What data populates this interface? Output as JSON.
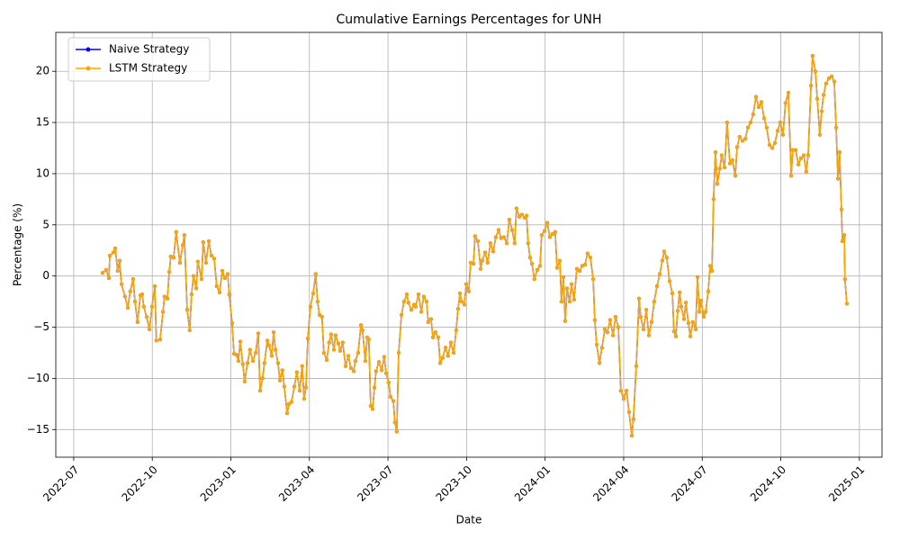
{
  "chart_data": {
    "type": "line",
    "title": "Cumulative Earnings Percentages for UNH",
    "x_label": "Date",
    "y_label": "Percentage (%)",
    "xlim": [
      2022.443,
      2025.072
    ],
    "ylim": [
      -17.7,
      23.8
    ],
    "xticks": [
      {
        "value": 2022.5,
        "label": "2022-07"
      },
      {
        "value": 2022.75,
        "label": "2022-10"
      },
      {
        "value": 2023.0,
        "label": "2023-01"
      },
      {
        "value": 2023.25,
        "label": "2023-04"
      },
      {
        "value": 2023.5,
        "label": "2023-07"
      },
      {
        "value": 2023.75,
        "label": "2023-10"
      },
      {
        "value": 2024.0,
        "label": "2024-01"
      },
      {
        "value": 2024.25,
        "label": "2024-04"
      },
      {
        "value": 2024.5,
        "label": "2024-07"
      },
      {
        "value": 2024.75,
        "label": "2024-10"
      },
      {
        "value": 2025.0,
        "label": "2025-01"
      }
    ],
    "yticks": [
      {
        "value": -15,
        "label": "−15"
      },
      {
        "value": -10,
        "label": "−10"
      },
      {
        "value": -5,
        "label": "−5"
      },
      0,
      5,
      10,
      15,
      20
    ],
    "grid": true,
    "legend": "upper left",
    "x": [
      2022.592,
      2022.603,
      2022.612,
      2022.615,
      2022.626,
      2022.632,
      2022.64,
      2022.646,
      2022.652,
      2022.663,
      2022.672,
      2022.68,
      2022.689,
      2022.695,
      2022.703,
      2022.712,
      2022.718,
      2022.723,
      2022.732,
      2022.741,
      2022.749,
      2022.758,
      2022.763,
      2022.775,
      2022.784,
      2022.789,
      2022.798,
      2022.804,
      2022.809,
      2022.818,
      2022.826,
      2022.838,
      2022.847,
      2022.852,
      2022.861,
      2022.869,
      2022.875,
      2022.881,
      2022.89,
      2022.895,
      2022.907,
      2022.912,
      2022.921,
      2022.93,
      2022.938,
      2022.947,
      2022.955,
      2022.964,
      2022.973,
      2022.981,
      2022.99,
      2022.995,
      2023.004,
      2023.01,
      2023.018,
      2023.024,
      2023.03,
      2023.038,
      2023.044,
      2023.053,
      2023.061,
      2023.07,
      2023.079,
      2023.087,
      2023.093,
      2023.101,
      2023.107,
      2023.116,
      2023.122,
      2023.13,
      2023.136,
      2023.142,
      2023.15,
      2023.156,
      2023.164,
      2023.17,
      2023.179,
      2023.185,
      2023.193,
      2023.202,
      2023.21,
      2023.219,
      2023.227,
      2023.233,
      2023.239,
      2023.245,
      2023.253,
      2023.262,
      2023.27,
      2023.276,
      2023.282,
      2023.29,
      2023.296,
      2023.305,
      2023.313,
      2023.319,
      2023.328,
      2023.333,
      2023.342,
      2023.348,
      2023.356,
      2023.365,
      2023.374,
      2023.382,
      2023.391,
      2023.396,
      2023.405,
      2023.414,
      2023.419,
      2023.428,
      2023.434,
      2023.439,
      2023.445,
      2023.451,
      2023.457,
      2023.462,
      2023.471,
      2023.48,
      2023.488,
      2023.494,
      2023.502,
      2023.508,
      2023.517,
      2023.522,
      2023.528,
      2023.534,
      2023.543,
      2023.551,
      2023.56,
      2023.565,
      2023.574,
      2023.583,
      2023.588,
      2023.597,
      2023.606,
      2023.614,
      2023.623,
      2023.628,
      2023.637,
      2023.643,
      2023.651,
      2023.66,
      2023.666,
      2023.674,
      2023.683,
      2023.691,
      2023.7,
      2023.709,
      2023.717,
      2023.723,
      2023.729,
      2023.734,
      2023.743,
      2023.749,
      2023.757,
      2023.763,
      2023.772,
      2023.777,
      2023.786,
      2023.795,
      2023.8,
      2023.809,
      2023.817,
      2023.826,
      2023.835,
      2023.843,
      2023.852,
      2023.86,
      2023.869,
      2023.878,
      2023.886,
      2023.895,
      2023.903,
      2023.909,
      2023.918,
      2023.926,
      2023.935,
      2023.941,
      2023.946,
      2023.952,
      2023.958,
      2023.966,
      2023.975,
      2023.984,
      2023.989,
      2023.998,
      2024.007,
      2024.015,
      2024.024,
      2024.032,
      2024.038,
      2024.047,
      2024.052,
      2024.058,
      2024.064,
      2024.07,
      2024.078,
      2024.084,
      2024.092,
      2024.101,
      2024.11,
      2024.118,
      2024.127,
      2024.135,
      2024.144,
      2024.153,
      2024.158,
      2024.164,
      2024.173,
      2024.181,
      2024.19,
      2024.198,
      2024.207,
      2024.216,
      2024.224,
      2024.233,
      2024.241,
      2024.25,
      2024.259,
      2024.267,
      2024.276,
      2024.281,
      2024.29,
      2024.299,
      2024.304,
      2024.313,
      2024.322,
      2024.33,
      2024.339,
      2024.347,
      2024.356,
      2024.365,
      2024.373,
      2024.379,
      2024.387,
      2024.396,
      2024.405,
      2024.41,
      2024.416,
      2024.422,
      2024.428,
      2024.433,
      2024.442,
      2024.448,
      2024.456,
      2024.462,
      2024.47,
      2024.479,
      2024.485,
      2024.491,
      2024.496,
      2024.505,
      2024.511,
      2024.519,
      2024.525,
      2024.531,
      2024.536,
      2024.542,
      2024.548,
      2024.556,
      2024.562,
      2024.571,
      2024.579,
      2024.588,
      2024.596,
      2024.605,
      2024.611,
      2024.619,
      2024.628,
      2024.637,
      2024.645,
      2024.654,
      2024.662,
      2024.671,
      2024.68,
      2024.688,
      2024.697,
      2024.705,
      2024.714,
      2024.723,
      2024.731,
      2024.74,
      2024.748,
      2024.757,
      2024.765,
      2024.774,
      2024.783,
      2024.788,
      2024.797,
      2024.806,
      2024.814,
      2024.823,
      2024.831,
      2024.837,
      2024.846,
      2024.851,
      2024.86,
      2024.866,
      2024.874,
      2024.88,
      2024.886,
      2024.894,
      2024.903,
      2024.912,
      2024.92,
      2024.926,
      2024.932,
      2024.937,
      2024.943,
      2024.946,
      2024.952,
      2024.954,
      2024.96
    ],
    "series": [
      {
        "name": "Naive Strategy",
        "color": "#0000ff",
        "values": [
          0.3,
          0.6,
          -0.2,
          2.0,
          2.3,
          2.7,
          0.5,
          1.5,
          -0.8,
          -2.0,
          -3.1,
          -1.5,
          -0.3,
          -2.5,
          -4.5,
          -1.9,
          -1.8,
          -3.0,
          -4.0,
          -5.2,
          -3.0,
          -1.0,
          -6.3,
          -6.2,
          -3.5,
          -2.0,
          -2.2,
          0.4,
          1.9,
          1.8,
          4.3,
          1.3,
          3.0,
          4.0,
          -3.3,
          -5.3,
          -1.8,
          0.0,
          -1.2,
          1.4,
          -0.3,
          3.3,
          1.3,
          3.4,
          2.0,
          1.7,
          -1.0,
          -1.6,
          0.5,
          -0.2,
          0.2,
          -1.8,
          -4.6,
          -7.6,
          -7.7,
          -8.3,
          -6.4,
          -8.6,
          -10.3,
          -8.5,
          -7.2,
          -8.3,
          -7.5,
          -5.6,
          -11.2,
          -10.0,
          -8.5,
          -6.3,
          -6.8,
          -7.8,
          -5.5,
          -7.2,
          -8.5,
          -10.2,
          -9.2,
          -10.8,
          -13.4,
          -12.5,
          -12.3,
          -10.8,
          -9.4,
          -11.2,
          -8.8,
          -12.0,
          -10.9,
          -6.1,
          -3.0,
          -1.7,
          0.2,
          -2.5,
          -3.8,
          -4.0,
          -7.5,
          -8.2,
          -6.5,
          -5.7,
          -7.2,
          -5.8,
          -6.6,
          -7.3,
          -6.5,
          -8.8,
          -7.8,
          -9.0,
          -9.3,
          -8.3,
          -7.5,
          -4.8,
          -5.3,
          -8.3,
          -6.0,
          -6.2,
          -12.7,
          -13.0,
          -10.9,
          -9.3,
          -8.4,
          -9.2,
          -7.9,
          -9.5,
          -10.4,
          -11.8,
          -12.2,
          -14.3,
          -15.2,
          -7.5,
          -3.8,
          -2.5,
          -1.8,
          -2.6,
          -3.3,
          -2.8,
          -3.0,
          -1.8,
          -3.5,
          -2.0,
          -2.5,
          -4.5,
          -4.2,
          -6.0,
          -5.5,
          -6.0,
          -8.5,
          -8.0,
          -7.0,
          -7.8,
          -6.5,
          -7.5,
          -5.3,
          -3.2,
          -1.7,
          -2.5,
          -2.8,
          -0.8,
          -1.5,
          1.3,
          1.2,
          3.9,
          3.4,
          0.7,
          1.5,
          2.3,
          1.3,
          3.2,
          2.4,
          3.8,
          4.5,
          3.7,
          3.8,
          3.2,
          5.5,
          4.5,
          3.2,
          6.6,
          5.8,
          6.0,
          5.7,
          5.9,
          3.2,
          1.8,
          1.2,
          -0.3,
          0.6,
          1.0,
          4.0,
          4.4,
          5.2,
          3.8,
          4.1,
          4.3,
          0.8,
          1.5,
          -2.5,
          -0.1,
          -4.4,
          -1.2,
          -2.5,
          -0.8,
          -2.3,
          0.7,
          0.5,
          1.0,
          1.1,
          2.2,
          1.8,
          -0.3,
          -4.3,
          -6.7,
          -8.5,
          -7.0,
          -5.2,
          -5.5,
          -4.3,
          -5.8,
          -4.0,
          -5.0,
          -11.2,
          -12.0,
          -11.2,
          -13.3,
          -15.6,
          -14.0,
          -8.8,
          -2.2,
          -4.0,
          -5.2,
          -3.3,
          -5.8,
          -4.5,
          -2.5,
          -1.0,
          0.2,
          1.5,
          2.4,
          1.8,
          -0.5,
          -1.7,
          -5.4,
          -5.9,
          -3.4,
          -1.6,
          -3.0,
          -4.2,
          -2.6,
          -4.6,
          -5.9,
          -4.5,
          -5.2,
          -0.1,
          -3.5,
          -2.4,
          -4.0,
          -3.5,
          -1.5,
          1.0,
          0.5,
          7.5,
          12.1,
          9.0,
          10.5,
          11.8,
          10.6,
          15.0,
          11.0,
          11.3,
          9.8,
          12.6,
          13.6,
          13.2,
          13.4,
          14.5,
          15.0,
          15.8,
          17.5,
          16.5,
          17.0,
          15.4,
          14.5,
          12.8,
          12.5,
          13.0,
          14.2,
          15.0,
          13.8,
          16.9,
          17.9,
          9.8,
          12.3,
          12.3,
          10.9,
          11.5,
          11.8,
          10.2,
          11.8,
          18.6,
          21.5,
          20.0,
          17.3,
          13.8,
          16.1,
          17.7,
          18.8,
          19.3,
          19.5,
          19.0,
          14.5,
          9.5,
          12.1,
          6.5,
          3.4,
          4.0,
          -0.3,
          -2.7
        ]
      },
      {
        "name": "LSTM Strategy",
        "color": "#ffa500",
        "values": [
          0.3,
          0.6,
          -0.2,
          2.0,
          2.3,
          2.7,
          0.5,
          1.5,
          -0.8,
          -2.0,
          -3.1,
          -1.5,
          -0.3,
          -2.5,
          -4.5,
          -1.9,
          -1.8,
          -3.0,
          -4.0,
          -5.2,
          -3.0,
          -1.0,
          -6.3,
          -6.2,
          -3.5,
          -2.0,
          -2.2,
          0.4,
          1.9,
          1.8,
          4.3,
          1.3,
          3.0,
          4.0,
          -3.3,
          -5.3,
          -1.8,
          0.0,
          -1.2,
          1.4,
          -0.3,
          3.3,
          1.3,
          3.4,
          2.0,
          1.7,
          -1.0,
          -1.6,
          0.5,
          -0.2,
          0.2,
          -1.8,
          -4.6,
          -7.6,
          -7.7,
          -8.3,
          -6.4,
          -8.6,
          -10.3,
          -8.5,
          -7.2,
          -8.3,
          -7.5,
          -5.6,
          -11.2,
          -10.0,
          -8.5,
          -6.3,
          -6.8,
          -7.8,
          -5.5,
          -7.2,
          -8.5,
          -10.2,
          -9.2,
          -10.8,
          -13.4,
          -12.5,
          -12.3,
          -10.8,
          -9.4,
          -11.2,
          -8.8,
          -12.0,
          -10.9,
          -6.1,
          -3.0,
          -1.7,
          0.2,
          -2.5,
          -3.8,
          -4.0,
          -7.5,
          -8.2,
          -6.5,
          -5.7,
          -7.2,
          -5.8,
          -6.6,
          -7.3,
          -6.5,
          -8.8,
          -7.8,
          -9.0,
          -9.3,
          -8.3,
          -7.5,
          -4.8,
          -5.3,
          -8.3,
          -6.0,
          -6.2,
          -12.7,
          -13.0,
          -10.9,
          -9.3,
          -8.4,
          -9.2,
          -7.9,
          -9.5,
          -10.4,
          -11.8,
          -12.2,
          -14.3,
          -15.2,
          -7.5,
          -3.8,
          -2.5,
          -1.8,
          -2.6,
          -3.3,
          -2.8,
          -3.0,
          -1.8,
          -3.5,
          -2.0,
          -2.5,
          -4.5,
          -4.2,
          -6.0,
          -5.5,
          -6.0,
          -8.5,
          -8.0,
          -7.0,
          -7.8,
          -6.5,
          -7.5,
          -5.3,
          -3.2,
          -1.7,
          -2.5,
          -2.8,
          -0.8,
          -1.5,
          1.3,
          1.2,
          3.9,
          3.4,
          0.7,
          1.5,
          2.3,
          1.3,
          3.2,
          2.4,
          3.8,
          4.5,
          3.7,
          3.8,
          3.2,
          5.5,
          4.5,
          3.2,
          6.6,
          5.8,
          6.0,
          5.7,
          5.9,
          3.2,
          1.8,
          1.2,
          -0.3,
          0.6,
          1.0,
          4.0,
          4.4,
          5.2,
          3.8,
          4.1,
          4.3,
          0.8,
          1.5,
          -2.5,
          -0.1,
          -4.4,
          -1.2,
          -2.5,
          -0.8,
          -2.3,
          0.7,
          0.5,
          1.0,
          1.1,
          2.2,
          1.8,
          -0.3,
          -4.3,
          -6.7,
          -8.5,
          -7.0,
          -5.2,
          -5.5,
          -4.3,
          -5.8,
          -4.0,
          -5.0,
          -11.2,
          -12.0,
          -11.2,
          -13.3,
          -15.6,
          -14.0,
          -8.8,
          -2.2,
          -4.0,
          -5.2,
          -3.3,
          -5.8,
          -4.5,
          -2.5,
          -1.0,
          0.2,
          1.5,
          2.4,
          1.8,
          -0.5,
          -1.7,
          -5.4,
          -5.9,
          -3.4,
          -1.6,
          -3.0,
          -4.2,
          -2.6,
          -4.6,
          -5.9,
          -4.5,
          -5.2,
          -0.1,
          -3.5,
          -2.4,
          -4.0,
          -3.5,
          -1.5,
          1.0,
          0.5,
          7.5,
          12.1,
          9.0,
          10.5,
          11.8,
          10.6,
          15.0,
          11.0,
          11.3,
          9.8,
          12.6,
          13.6,
          13.2,
          13.4,
          14.5,
          15.0,
          15.8,
          17.5,
          16.5,
          17.0,
          15.4,
          14.5,
          12.8,
          12.5,
          13.0,
          14.2,
          15.0,
          13.8,
          16.9,
          17.9,
          9.8,
          12.3,
          12.3,
          10.9,
          11.5,
          11.8,
          10.2,
          11.8,
          18.6,
          21.5,
          20.0,
          17.3,
          13.8,
          16.1,
          17.7,
          18.8,
          19.3,
          19.5,
          19.0,
          14.5,
          9.5,
          12.1,
          6.5,
          3.4,
          4.0,
          -0.3,
          -2.7
        ]
      }
    ]
  }
}
